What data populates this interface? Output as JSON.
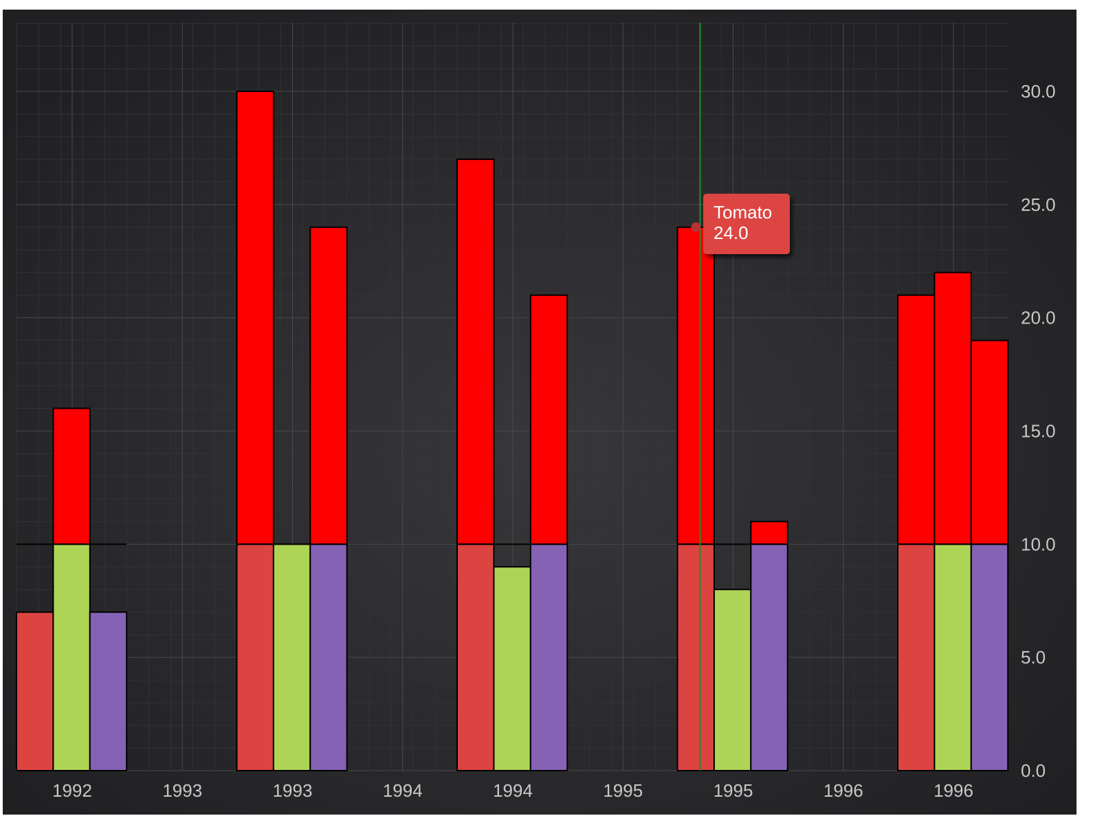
{
  "chart_data": {
    "type": "bar",
    "title": "",
    "xlabel": "",
    "ylabel": "",
    "ylim": [
      0,
      33
    ],
    "y_ticks": [
      "0.0",
      "5.0",
      "10.0",
      "15.0",
      "20.0",
      "25.0",
      "30.0"
    ],
    "x_tick_labels": [
      "1992",
      "1993",
      "1993",
      "1994",
      "1994",
      "1995",
      "1995",
      "1996",
      "1996"
    ],
    "groups": [
      "1992",
      "1993",
      "1994",
      "1995",
      "1996"
    ],
    "threshold": 10,
    "series": [
      {
        "name": "Tomato",
        "values": [
          7,
          30,
          27,
          24,
          21
        ]
      },
      {
        "values": [
          16,
          10,
          9,
          8,
          22
        ]
      },
      {
        "values": [
          7,
          24,
          21,
          11,
          19
        ]
      }
    ],
    "colors": {
      "below_threshold": [
        "#dc4442",
        "#aed455",
        "#8562b4"
      ],
      "above_threshold": "#ff0000",
      "background": "#2b2b2e",
      "grid": "#4a4a4e",
      "crosshair": "#228b22",
      "tooltip": "#dc4442"
    },
    "grid": true,
    "crosshair_group": 3,
    "tooltip": {
      "series": "Tomato",
      "value": "24.0"
    }
  }
}
